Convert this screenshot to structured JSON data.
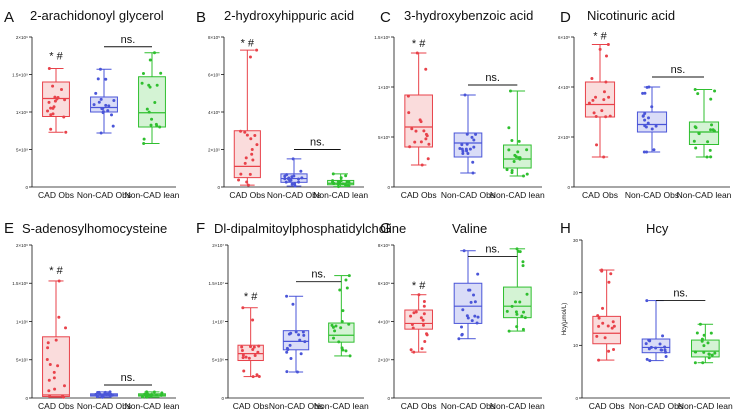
{
  "figure": {
    "series_styles": [
      {
        "group": "CAD Obs",
        "fill": "#fadcdc",
        "stroke": "#e8424a"
      },
      {
        "group": "Non-CAD Obs",
        "fill": "#d9dcf7",
        "stroke": "#4a55d8"
      },
      {
        "group": "Non-CAD lean",
        "fill": "#d4f3d4",
        "stroke": "#2fbf2f"
      }
    ],
    "ns_label": "ns.",
    "sig_label": "* #"
  },
  "chart_data": [
    {
      "letter": "A",
      "title": "2-arachidonoyl glycerol",
      "type": "box",
      "ylabel": "",
      "categories": [
        "CAD Obs",
        "Non-CAD Obs",
        "Non-CAD lean"
      ],
      "ylim": [
        0,
        2000000000
      ],
      "ticks": [
        0,
        500000000,
        1000000000,
        1500000000,
        2000000000
      ],
      "tick_labels": [
        "0",
        "5×10⁸",
        "1×10⁹",
        "1.5×10⁹",
        "2×10⁹"
      ],
      "boxes": [
        {
          "min": 730000000,
          "q1": 940000000,
          "median": 1180000000,
          "q3": 1400000000,
          "max": 1580000000
        },
        {
          "min": 720000000,
          "q1": 1000000000,
          "median": 1060000000,
          "q3": 1200000000,
          "max": 1570000000
        },
        {
          "min": 580000000,
          "q1": 800000000,
          "median": 990000000,
          "q3": 1470000000,
          "max": 1790000000
        }
      ],
      "sig_marker": {
        "group": 0,
        "y": 1700000000
      },
      "ns_bracket": {
        "from": 1,
        "to": 2,
        "y": 1870000000
      }
    },
    {
      "letter": "B",
      "title": "2-hydroxyhippuric acid",
      "type": "box",
      "ylabel": "",
      "categories": [
        "CAD Obs",
        "Non-CAD Obs",
        "Non-CAD lean"
      ],
      "ylim": [
        0,
        800000
      ],
      "ticks": [
        0,
        200000,
        400000,
        600000,
        800000
      ],
      "tick_labels": [
        "0",
        "2×10⁵",
        "4×10⁵",
        "6×10⁵",
        "8×10⁵"
      ],
      "boxes": [
        {
          "min": 10000,
          "q1": 50000,
          "median": 110000,
          "q3": 300000,
          "max": 730000
        },
        {
          "min": 5000,
          "q1": 25000,
          "median": 45000,
          "q3": 70000,
          "max": 150000
        },
        {
          "min": 2000,
          "q1": 12000,
          "median": 20000,
          "q3": 35000,
          "max": 70000
        }
      ],
      "sig_marker": {
        "group": 0,
        "y": 750000
      },
      "ns_bracket": {
        "from": 1,
        "to": 2,
        "y": 200000
      }
    },
    {
      "letter": "C",
      "title": "3-hydroxybenzoic acid",
      "type": "box",
      "ylabel": "",
      "categories": [
        "CAD Obs",
        "Non-CAD Obs",
        "Non-CAD lean"
      ],
      "ylim": [
        0,
        1500000
      ],
      "ticks": [
        0,
        500000,
        1000000,
        1500000
      ],
      "tick_labels": [
        "0",
        "5×10⁵",
        "1×10⁶",
        "1.5×10⁶"
      ],
      "boxes": [
        {
          "min": 220000,
          "q1": 400000,
          "median": 600000,
          "q3": 920000,
          "max": 1340000
        },
        {
          "min": 140000,
          "q1": 300000,
          "median": 440000,
          "q3": 540000,
          "max": 920000
        },
        {
          "min": 110000,
          "q1": 190000,
          "median": 280000,
          "q3": 420000,
          "max": 960000
        }
      ],
      "sig_marker": {
        "group": 0,
        "y": 1400000
      },
      "ns_bracket": {
        "from": 1,
        "to": 2,
        "y": 1020000
      }
    },
    {
      "letter": "D",
      "title": "Nicotinuric acid",
      "type": "box",
      "ylabel": "",
      "categories": [
        "CAD Obs",
        "Non-CAD Obs",
        "Non-CAD lean"
      ],
      "ylim": [
        0,
        6000000
      ],
      "ticks": [
        0,
        2000000,
        4000000,
        6000000
      ],
      "tick_labels": [
        "0",
        "2×10⁶",
        "4×10⁶",
        "6×10⁶"
      ],
      "boxes": [
        {
          "min": 1200000,
          "q1": 2800000,
          "median": 3300000,
          "q3": 4200000,
          "max": 5700000
        },
        {
          "min": 1400000,
          "q1": 2200000,
          "median": 2500000,
          "q3": 3000000,
          "max": 4000000
        },
        {
          "min": 1200000,
          "q1": 1700000,
          "median": 2200000,
          "q3": 2600000,
          "max": 3900000
        }
      ],
      "sig_marker": {
        "group": 0,
        "y": 5900000
      },
      "ns_bracket": {
        "from": 1,
        "to": 2,
        "y": 4400000
      }
    },
    {
      "letter": "E",
      "title": "S-adenosylhomocysteine",
      "type": "box",
      "ylabel": "",
      "categories": [
        "CAD Obs",
        "Non-CAD Obs",
        "Non-CAD lean"
      ],
      "ylim": [
        0,
        2000000
      ],
      "ticks": [
        0,
        500000,
        1000000,
        1500000,
        2000000
      ],
      "tick_labels": [
        "0",
        "5×10⁵",
        "1×10⁶",
        "1.5×10⁶",
        "2×10⁶"
      ],
      "boxes": [
        {
          "min": 10000,
          "q1": 20000,
          "median": 40000,
          "q3": 800000,
          "max": 1530000
        },
        {
          "min": 10000,
          "q1": 25000,
          "median": 40000,
          "q3": 55000,
          "max": 80000
        },
        {
          "min": 10000,
          "q1": 25000,
          "median": 40000,
          "q3": 55000,
          "max": 80000
        }
      ],
      "sig_marker": {
        "group": 0,
        "y": 1620000
      },
      "ns_bracket": {
        "from": 1,
        "to": 2,
        "y": 170000
      }
    },
    {
      "letter": "F",
      "title": "Dl-dipalmitoylphosphatidylcholine",
      "type": "box",
      "ylabel": "",
      "categories": [
        "CAD Obs",
        "Non-CAD Obs",
        "Non-CAD lean"
      ],
      "ylim": [
        0,
        20000000
      ],
      "ticks": [
        0,
        5000000,
        10000000,
        15000000,
        20000000
      ],
      "tick_labels": [
        "0",
        "5×10⁶",
        "1×10⁷",
        "1.5×10⁷",
        "2×10⁷"
      ],
      "boxes": [
        {
          "min": 2800000,
          "q1": 4900000,
          "median": 5800000,
          "q3": 6900000,
          "max": 11800000
        },
        {
          "min": 3400000,
          "q1": 6300000,
          "median": 7400000,
          "q3": 8800000,
          "max": 13300000
        },
        {
          "min": 5500000,
          "q1": 7300000,
          "median": 8200000,
          "q3": 9800000,
          "max": 16000000
        }
      ],
      "sig_marker": {
        "group": 0,
        "y": 12800000
      },
      "ns_bracket": {
        "from": 1,
        "to": 2,
        "y": 15200000
      }
    },
    {
      "letter": "G",
      "title": "Valine",
      "type": "box",
      "ylabel": "",
      "categories": [
        "CAD Obs",
        "Non-CAD Obs",
        "Non-CAD lean"
      ],
      "ylim": [
        0,
        8000000000
      ],
      "ticks": [
        0,
        2000000000,
        4000000000,
        6000000000,
        8000000000
      ],
      "tick_labels": [
        "0",
        "2×10⁹",
        "4×10⁹",
        "6×10⁹",
        "8×10⁹"
      ],
      "boxes": [
        {
          "min": 2400000000,
          "q1": 3600000000,
          "median": 3900000000,
          "q3": 4600000000,
          "max": 5400000000
        },
        {
          "min": 3100000000,
          "q1": 3900000000,
          "median": 4800000000,
          "q3": 6000000000,
          "max": 7700000000
        },
        {
          "min": 3500000000,
          "q1": 4200000000,
          "median": 4800000000,
          "q3": 5800000000,
          "max": 7800000000
        }
      ],
      "sig_marker": {
        "group": 0,
        "y": 5700000000
      },
      "ns_bracket": {
        "from": 1,
        "to": 2,
        "y": 7400000000
      }
    },
    {
      "letter": "H",
      "title": "Hcy",
      "type": "box",
      "ylabel": "Hcy(μmol/L)",
      "categories": [
        "CAD Obs",
        "Non-CAD Obs",
        "Non-CAD lean"
      ],
      "ylim": [
        0,
        30
      ],
      "ticks": [
        0,
        10,
        20,
        30
      ],
      "tick_labels": [
        "0",
        "10",
        "20",
        "30"
      ],
      "boxes": [
        {
          "min": 7.2,
          "q1": 10.3,
          "median": 12.3,
          "q3": 15.5,
          "max": 24.3
        },
        {
          "min": 7.1,
          "q1": 8.6,
          "median": 9.6,
          "q3": 11.2,
          "max": 18.5
        },
        {
          "min": 6.7,
          "q1": 7.8,
          "median": 8.9,
          "q3": 11.0,
          "max": 14.0
        }
      ],
      "sig_marker": null,
      "ns_bracket": {
        "from": 1,
        "to": 2,
        "y": 18.5
      }
    }
  ]
}
